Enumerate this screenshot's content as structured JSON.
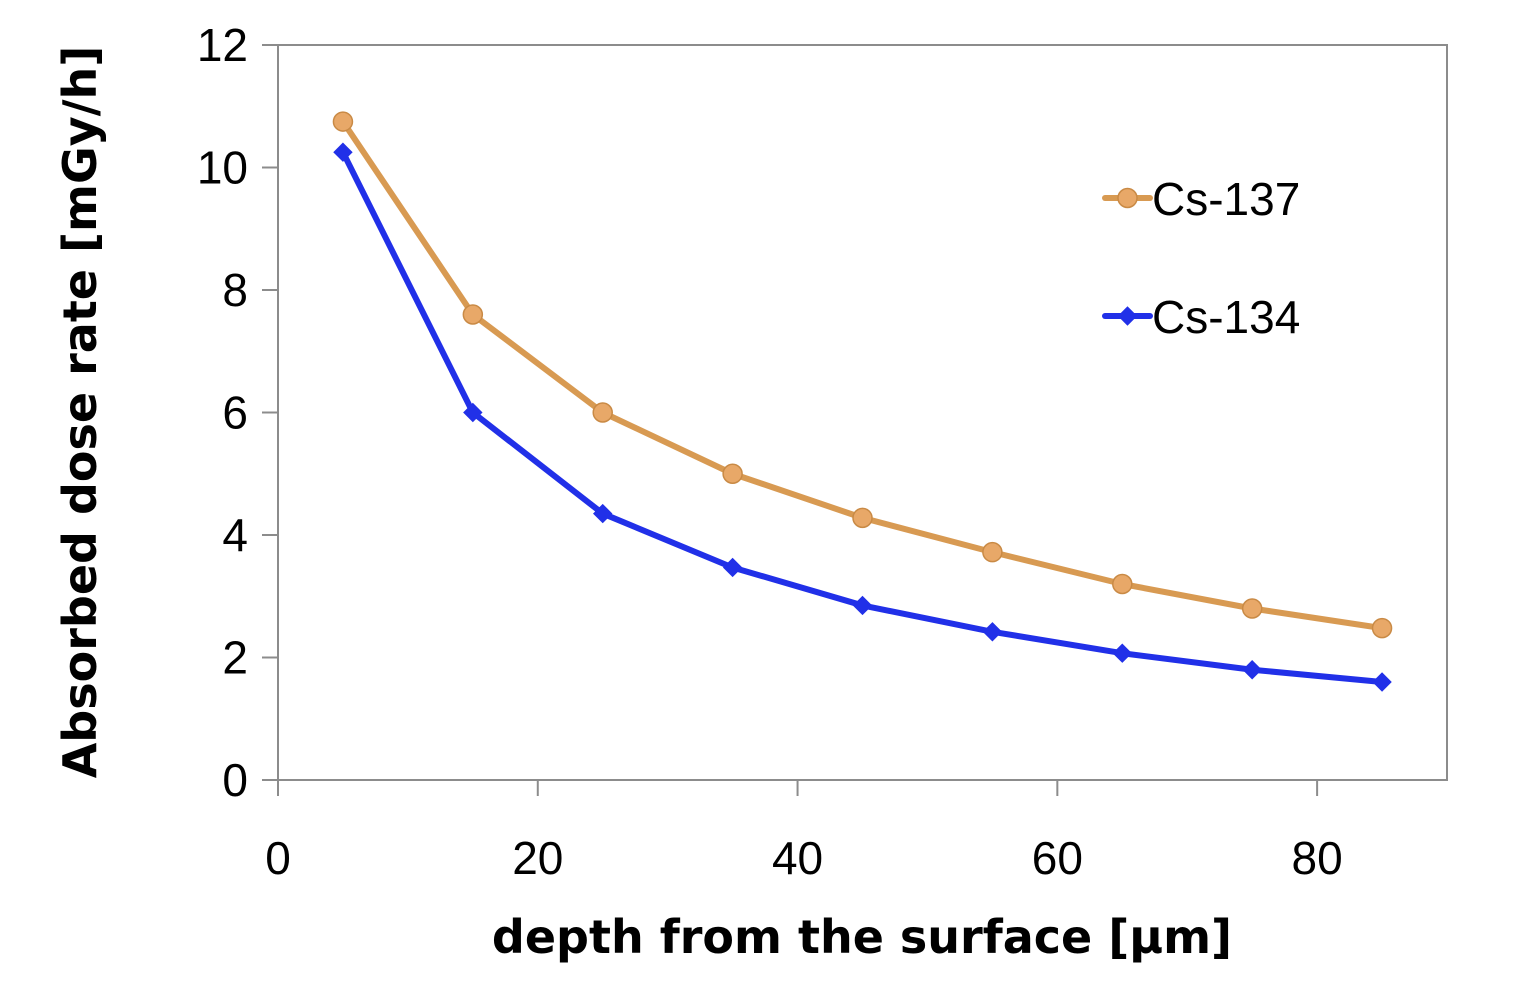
{
  "chart_data": {
    "type": "line",
    "title": "",
    "xlabel": "depth from the surface [µm]",
    "ylabel": "Absorbed dose rate [mGy/h]",
    "xlim": [
      0,
      90
    ],
    "ylim": [
      0,
      12
    ],
    "xticks": [
      0,
      20,
      40,
      60,
      80
    ],
    "xtick_labels": [
      "0",
      "20",
      "40",
      "60",
      "80"
    ],
    "yticks": [
      0,
      2,
      4,
      6,
      8,
      10,
      12
    ],
    "ytick_labels": [
      "0",
      "2",
      "4",
      "6",
      "8",
      "10",
      "12"
    ],
    "grid": false,
    "legend_position": "right",
    "x": [
      5,
      15,
      25,
      35,
      45,
      55,
      65,
      75,
      85
    ],
    "series": [
      {
        "name": "Cs-137",
        "marker": "circle",
        "color": "#D89A52",
        "marker_color": "#E8A868",
        "values": [
          10.75,
          7.6,
          6.0,
          5.0,
          4.28,
          3.72,
          3.2,
          2.8,
          2.48
        ]
      },
      {
        "name": "Cs-134",
        "marker": "diamond",
        "color": "#2130E8",
        "marker_color": "#2130E8",
        "values": [
          10.25,
          6.0,
          4.35,
          3.47,
          2.85,
          2.42,
          2.07,
          1.8,
          1.6
        ]
      }
    ]
  }
}
